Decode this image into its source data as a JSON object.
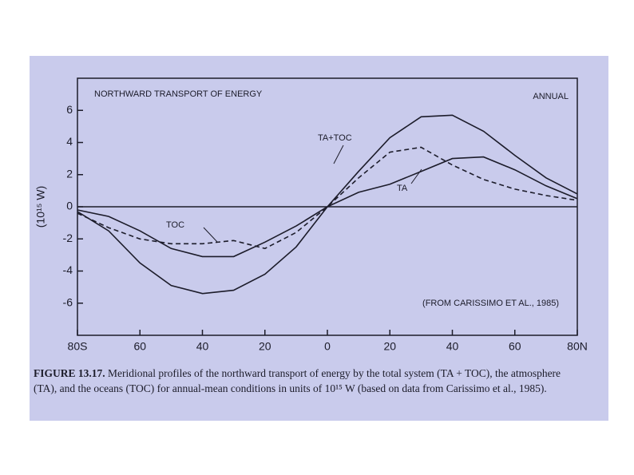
{
  "chart_data": {
    "type": "line",
    "title": "NORTHWARD TRANSPORT OF ENERGY",
    "subtitle": "ANNUAL",
    "y_label": "(10¹⁵ W)",
    "annotation": "(FROM CARISSIMO ET AL., 1985)",
    "caption_label": "FIGURE 13.17.",
    "caption": "Meridional profiles of the northward transport of energy by the total system (TA + TOC), the atmosphere (TA), and the oceans (TOC) for annual-mean conditions in units of 10¹⁵ W (based on data from Carissimo et al., 1985).",
    "x": [
      -80,
      -70,
      -60,
      -50,
      -40,
      -30,
      -20,
      -10,
      0,
      10,
      20,
      30,
      40,
      50,
      60,
      70,
      80
    ],
    "series": [
      {
        "name": "TA+TOC",
        "color": "#1c1c2a",
        "dash": false,
        "values": [
          -0.3,
          -1.5,
          -3.5,
          -4.9,
          -5.4,
          -5.2,
          -4.2,
          -2.5,
          0,
          2.2,
          4.3,
          5.6,
          5.7,
          4.7,
          3.2,
          1.8,
          0.8
        ]
      },
      {
        "name": "TA",
        "color": "#1c1c2a",
        "dash": false,
        "values": [
          -0.2,
          -0.6,
          -1.5,
          -2.6,
          -3.1,
          -3.1,
          -2.2,
          -1.2,
          0,
          0.9,
          1.4,
          2.2,
          3.0,
          3.1,
          2.3,
          1.3,
          0.5
        ]
      },
      {
        "name": "TOC",
        "color": "#1c1c2a",
        "dash": true,
        "values": [
          -0.4,
          -1.3,
          -2.0,
          -2.3,
          -2.3,
          -2.1,
          -2.6,
          -1.6,
          0,
          1.8,
          3.4,
          3.7,
          2.6,
          1.7,
          1.1,
          0.7,
          0.4
        ]
      }
    ],
    "xlim": [
      -80,
      80
    ],
    "xticks": [
      {
        "value": -80,
        "label": "80S"
      },
      {
        "value": -60,
        "label": "60"
      },
      {
        "value": -40,
        "label": "40"
      },
      {
        "value": -20,
        "label": "20"
      },
      0,
      {
        "value": 20,
        "label": "20"
      },
      {
        "value": 40,
        "label": "40"
      },
      {
        "value": 60,
        "label": "60"
      },
      {
        "value": 80,
        "label": "80N"
      }
    ],
    "ylim": [
      -8,
      8
    ],
    "yticks": [
      -6,
      -4,
      -2,
      0,
      2,
      4,
      6
    ]
  }
}
